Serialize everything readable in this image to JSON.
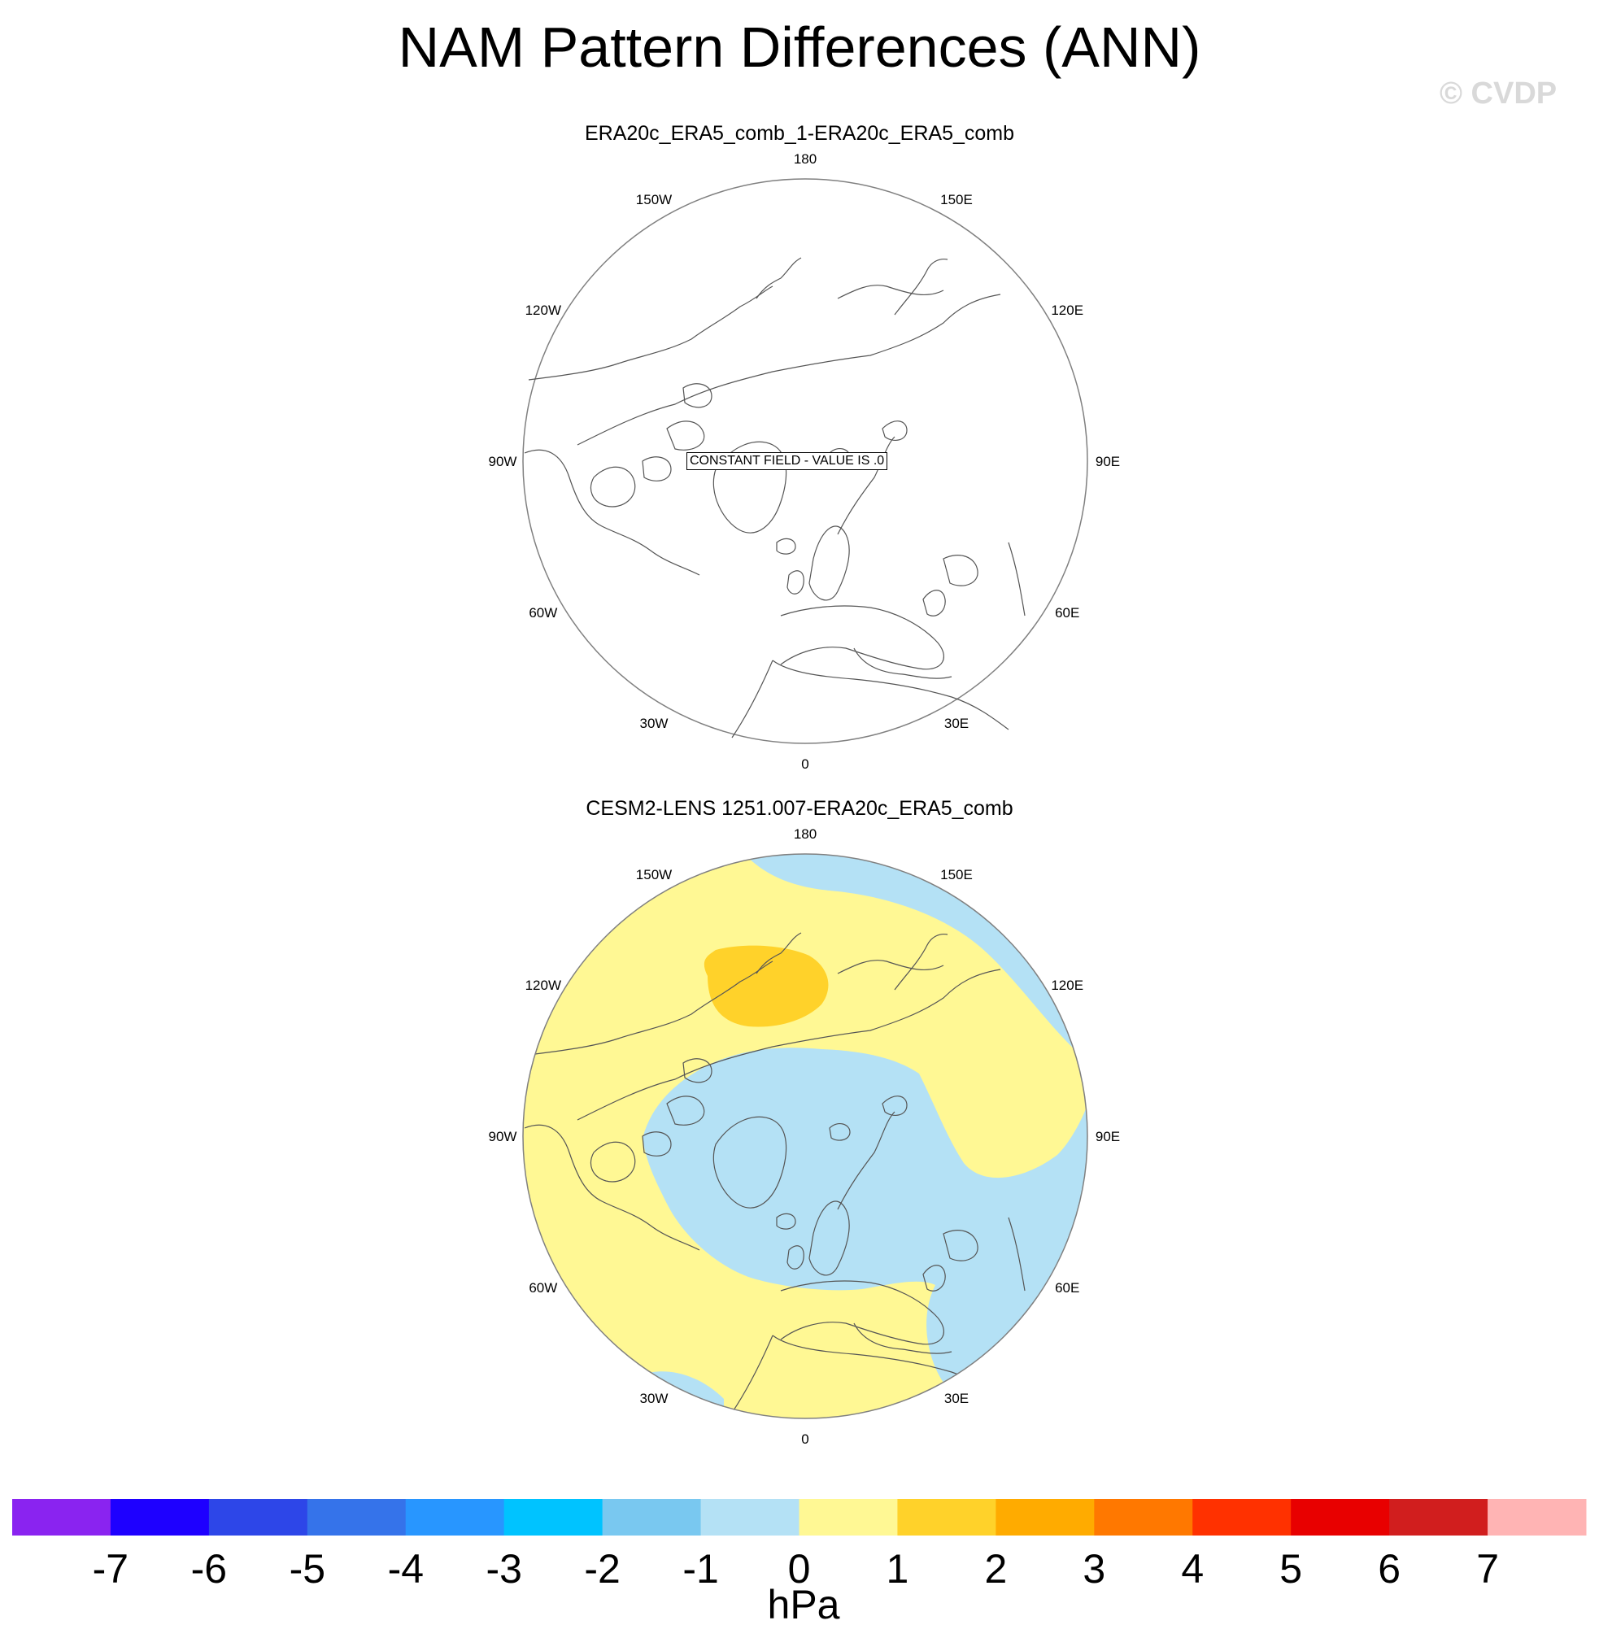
{
  "figure": {
    "title": "NAM Pattern Differences (ANN)",
    "watermark": "© CVDP"
  },
  "chart_data": [
    {
      "type": "map",
      "title": "ERA20c_ERA5_comb_1-ERA20c_ERA5_comb",
      "projection": "north-polar-stereographic",
      "longitude_labels": [
        "180",
        "150E",
        "120E",
        "90E",
        "60E",
        "30E",
        "0",
        "30W",
        "60W",
        "90W",
        "120W",
        "150W"
      ],
      "annotation": "CONSTANT FIELD - VALUE IS .0",
      "field": "constant 0"
    },
    {
      "type": "map",
      "title": "CESM2-LENS 1251.007-ERA20c_ERA5_comb",
      "projection": "north-polar-stereographic",
      "longitude_labels": [
        "180",
        "150E",
        "120E",
        "90E",
        "60E",
        "30E",
        "0",
        "30W",
        "60W",
        "90W",
        "120W",
        "150W"
      ],
      "regions": [
        {
          "range": "0 to 1",
          "area": "mid-latitudes (Pacific, North America, Atlantic, Europe)"
        },
        {
          "range": "-1 to 0",
          "area": "Arctic polar cap, NE Pacific, Siberia"
        },
        {
          "range": "1 to 2",
          "area": "Aleutian / Bering Sea maximum"
        }
      ]
    }
  ],
  "colorbar": {
    "unit": "hPa",
    "levels": [
      "-7",
      "-6",
      "-5",
      "-4",
      "-3",
      "-2",
      "-1",
      "0",
      "1",
      "2",
      "3",
      "4",
      "5",
      "6",
      "7"
    ],
    "colors": [
      "#8a23f0",
      "#1e00ff",
      "#2d46e8",
      "#3573ea",
      "#2896ff",
      "#00c3ff",
      "#79c8f0",
      "#b4e1f5",
      "#fff894",
      "#ffd22a",
      "#ffab00",
      "#ff7800",
      "#ff3100",
      "#e80000",
      "#d11e1e",
      "#ffb4b4"
    ]
  },
  "colors": {
    "pos_small": "#fff894",
    "neg_small": "#b4e1f5",
    "pos_mid": "#ffd22a",
    "coast": "#555555",
    "map_border": "#808080"
  }
}
